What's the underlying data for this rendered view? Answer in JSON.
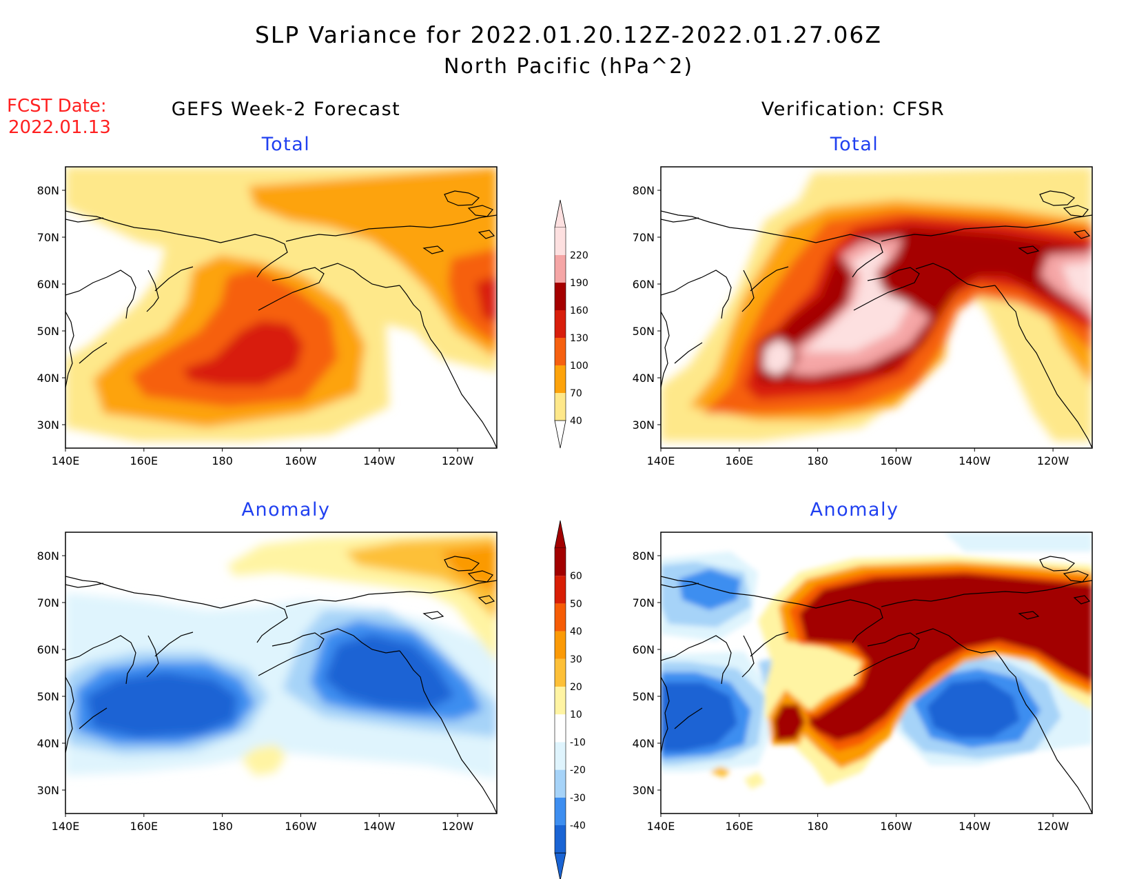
{
  "header": {
    "title_line1": "SLP Variance for 2022.01.20.12Z-2022.01.27.06Z",
    "title_line2": "North Pacific (hPa^2)",
    "fcst_date_label": "FCST Date:",
    "fcst_date_value": "2022.01.13",
    "left_column_title": "GEFS Week-2 Forecast",
    "right_column_title": "Verification: CFSR"
  },
  "panels": {
    "top_left": {
      "subtitle": "Total"
    },
    "top_right": {
      "subtitle": "Total"
    },
    "bottom_left": {
      "subtitle": "Anomaly"
    },
    "bottom_right": {
      "subtitle": "Anomaly"
    }
  },
  "axes": {
    "lat_labels": [
      "80N",
      "70N",
      "60N",
      "50N",
      "40N",
      "30N"
    ],
    "lat_values": [
      80,
      70,
      60,
      50,
      40,
      30
    ],
    "lon_labels": [
      "140E",
      "160E",
      "180",
      "160W",
      "140W",
      "120W"
    ],
    "lon_values": [
      140,
      160,
      180,
      200,
      220,
      240
    ],
    "lon_range": [
      140,
      250
    ],
    "lat_range": [
      25,
      85
    ]
  },
  "colorbars": {
    "total": {
      "labels": [
        "40",
        "70",
        "100",
        "130",
        "160",
        "190",
        "220"
      ],
      "colors": [
        "#fee88a",
        "#fda30b",
        "#f66010",
        "#d81e0c",
        "#a50000",
        "#f5a6a6",
        "#fde0e0"
      ]
    },
    "anomaly": {
      "labels": [
        "-40",
        "-30",
        "-20",
        "-10",
        "10",
        "20",
        "30",
        "40",
        "50",
        "60"
      ],
      "colors": [
        "#1a64d4",
        "#3d8ef0",
        "#a6d3f8",
        "#dff4fd",
        "#ffffff",
        "#fff4a3",
        "#fdc038",
        "#fb9a06",
        "#f65c05",
        "#d81e05",
        "#a20000"
      ]
    }
  }
}
